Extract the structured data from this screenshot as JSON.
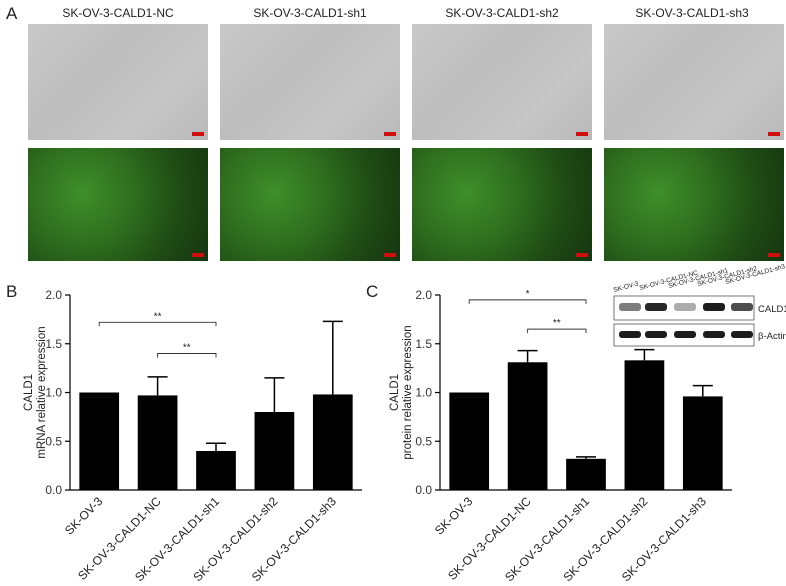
{
  "panel_a": {
    "letter": "A",
    "labels": [
      "SK-OV-3-CALD1-NC",
      "SK-OV-3-CALD1-sh1",
      "SK-OV-3-CALD1-sh2",
      "SK-OV-3-CALD1-sh3"
    ]
  },
  "panel_b_letter": "B",
  "panel_c_letter": "C",
  "colors": {
    "bar": "#000000",
    "brightfield": "#c2c2c2",
    "fluorescence": "#2c6a1d",
    "scalebar": "#d01010"
  },
  "western_blot": {
    "lanes": [
      "SK-OV-3",
      "SK-OV-3-CALD1-NC",
      "SK-OV-3-CALD1-sh1",
      "SK-OV-3-CALD1-sh2",
      "SK-OV-3-CALD1-sh3"
    ],
    "bands": [
      "CALD1",
      "β-Actin"
    ],
    "cald1_intensity": [
      0.55,
      0.9,
      0.35,
      0.95,
      0.75
    ],
    "actin_intensity": [
      0.95,
      0.95,
      0.95,
      0.95,
      0.95
    ]
  },
  "chart_data": [
    {
      "type": "bar",
      "ylabel": "CALD1\nmRNA relative expression",
      "ylim": [
        0,
        2.0
      ],
      "yticks": [
        "0.0",
        "0.5",
        "1.0",
        "1.5",
        "2.0"
      ],
      "categories": [
        "SK-OV-3",
        "SK-OV-3-CALD1-NC",
        "SK-OV-3-CALD1-sh1",
        "SK-OV-3-CALD1-sh2",
        "SK-OV-3-CALD1-sh3"
      ],
      "values": [
        1.0,
        0.97,
        0.4,
        0.8,
        0.98
      ],
      "errors": [
        0,
        0.19,
        0.08,
        0.35,
        0.75
      ],
      "significance": [
        {
          "from": 0,
          "to": 2,
          "y": 1.72,
          "label": "**"
        },
        {
          "from": 1,
          "to": 2,
          "y": 1.4,
          "label": "**"
        }
      ]
    },
    {
      "type": "bar",
      "ylabel": "CALD1\nprotein relative expression",
      "ylim": [
        0,
        2.0
      ],
      "yticks": [
        "0.0",
        "0.5",
        "1.0",
        "1.5",
        "2.0"
      ],
      "categories": [
        "SK-OV-3",
        "SK-OV-3-CALD1-NC",
        "SK-OV-3-CALD1-sh1",
        "SK-OV-3-CALD1-sh2",
        "SK-OV-3-CALD1-sh3"
      ],
      "values": [
        1.0,
        1.31,
        0.32,
        1.33,
        0.96
      ],
      "errors": [
        0,
        0.12,
        0.02,
        0.11,
        0.11
      ],
      "significance": [
        {
          "from": 0,
          "to": 2,
          "y": 1.95,
          "label": "*"
        },
        {
          "from": 1,
          "to": 2,
          "y": 1.65,
          "label": "**"
        }
      ]
    }
  ]
}
